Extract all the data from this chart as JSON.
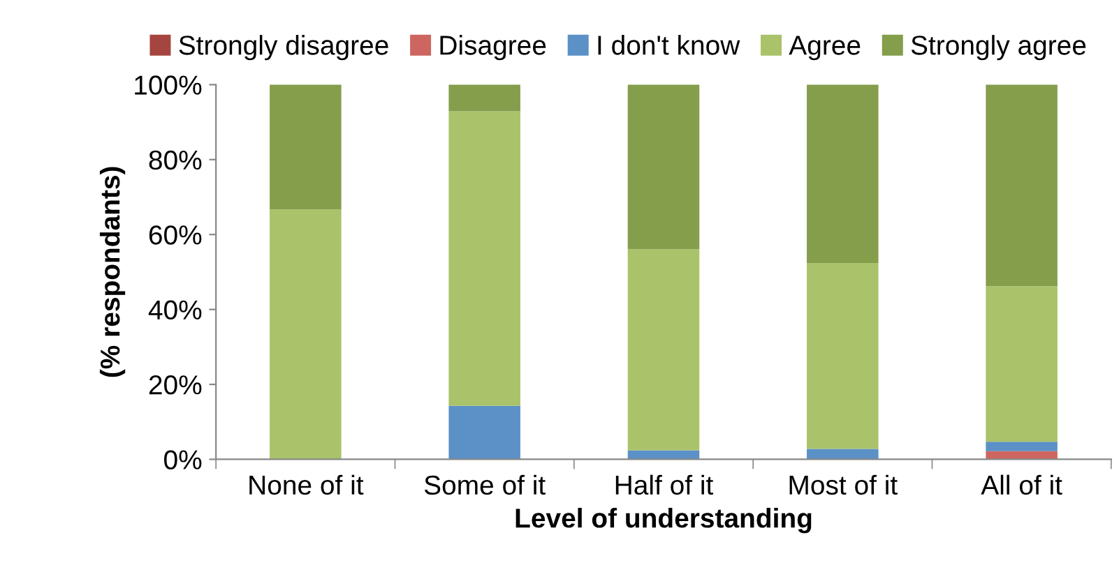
{
  "chart_data": {
    "type": "bar",
    "stacked": true,
    "xlabel": "Level of understanding",
    "ylabel": "(% respondants)",
    "categories": [
      "None of it",
      "Some of it",
      "Half of it",
      "Most of it",
      "All of it"
    ],
    "series": [
      {
        "name": "Strongly disagree",
        "color": "#a5453f",
        "values": [
          0,
          0,
          0,
          0,
          0
        ]
      },
      {
        "name": "Disagree",
        "color": "#cd6660",
        "values": [
          0,
          0,
          0,
          0,
          2.2
        ]
      },
      {
        "name": "I don't know",
        "color": "#5b91c6",
        "values": [
          0,
          14.3,
          2.4,
          2.8,
          2.5
        ]
      },
      {
        "name": "Agree",
        "color": "#aac26a",
        "values": [
          66.7,
          78.6,
          53.7,
          49.6,
          41.5
        ]
      },
      {
        "name": "Strongly agree",
        "color": "#849e4b",
        "values": [
          33.3,
          7.1,
          43.9,
          47.6,
          53.8
        ]
      }
    ],
    "ylim": [
      0,
      100
    ],
    "yticks": [
      {
        "value": 0,
        "label": "0%"
      },
      {
        "value": 20,
        "label": "20%"
      },
      {
        "value": 40,
        "label": "40%"
      },
      {
        "value": 60,
        "label": "60%"
      },
      {
        "value": 80,
        "label": "80%"
      },
      {
        "value": 100,
        "label": "100%"
      }
    ],
    "grid": false,
    "legend": "top"
  }
}
